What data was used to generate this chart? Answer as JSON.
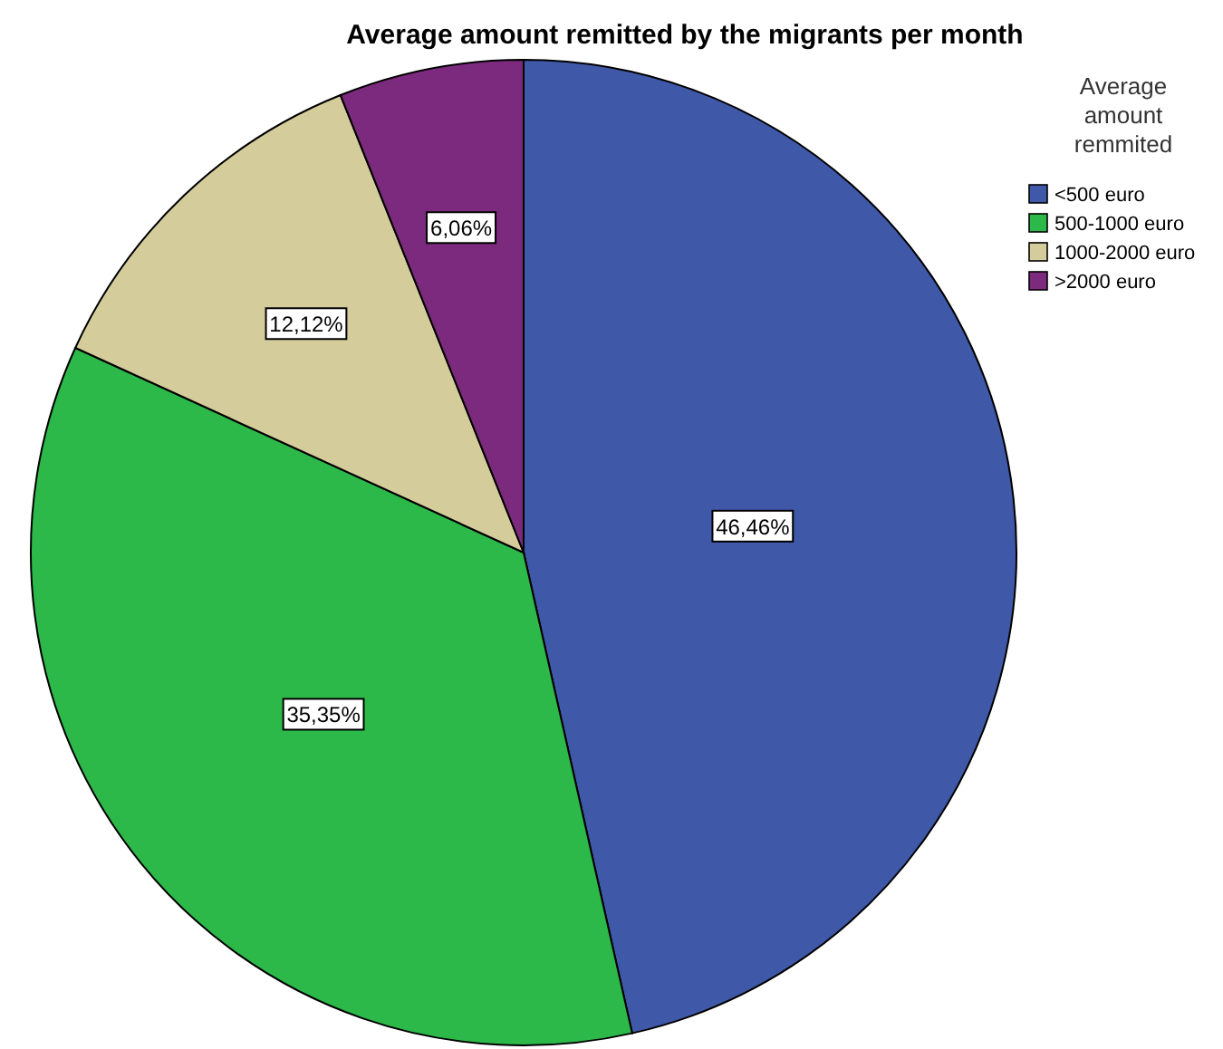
{
  "chart_data": {
    "type": "pie",
    "title": "Average amount remitted by the migrants per month",
    "legend_title": "Average amount remmited",
    "categories": [
      "<500 euro",
      "500-1000 euro",
      "1000-2000 euro",
      ">2000 euro"
    ],
    "values": [
      46.46,
      35.35,
      12.12,
      6.06
    ],
    "colors": [
      "#3f58a8",
      "#2db84a",
      "#d4cc9a",
      "#7b2a7e"
    ],
    "value_labels": [
      "46,46%",
      "35,35%",
      "12,12%",
      "6,06%"
    ],
    "legend": "top right"
  }
}
